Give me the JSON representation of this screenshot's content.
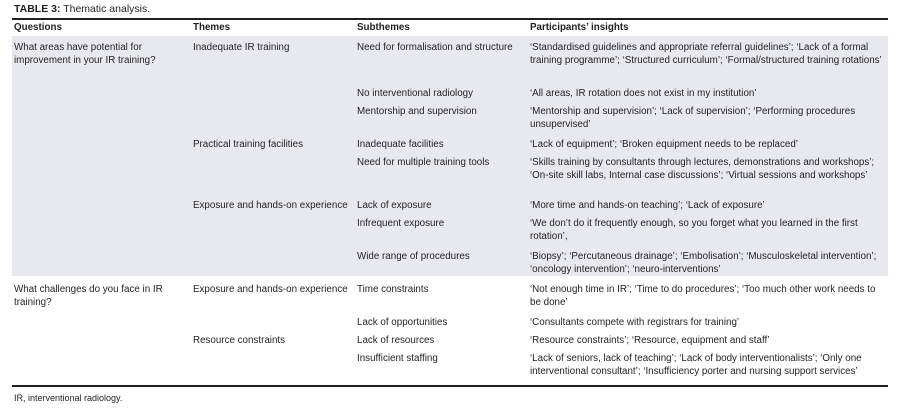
{
  "caption": {
    "label": "TABLE 3:",
    "text": " Thematic analysis."
  },
  "headers": [
    "Questions",
    "Themes",
    "Subthemes",
    "Participants’ insights"
  ],
  "rows": [
    {
      "question": "What areas have potential for improvement in your IR training?",
      "theme": "Inadequate IR training",
      "subtheme": "Need for formalisation and structure",
      "insight": "‘Standardised guidelines and appropriate referral guidelines’; ‘Lack of a formal training programme’; ‘Structured curriculum’; ‘Formal/structured training rotations’"
    },
    {
      "question": "",
      "theme": "",
      "subtheme": "No interventional radiology",
      "insight": "‘All areas, IR rotation does not exist in my institution’"
    },
    {
      "question": "",
      "theme": "",
      "subtheme": "Mentorship and supervision",
      "insight": "‘Mentorship and supervision’; ‘Lack of supervision’; ‘Performing procedures unsupervised’"
    },
    {
      "question": "",
      "theme": "Practical training facilities",
      "subtheme": "Inadequate facilities",
      "insight": "‘Lack of equipment’; ‘Broken equipment needs to be replaced’"
    },
    {
      "question": "",
      "theme": "",
      "subtheme": "Need for multiple training tools",
      "insight": " ‘Skills training by consultants through lectures, demonstrations and workshops’; ‘On-site skill labs, Internal case discussions’; ‘Virtual sessions and workshops’"
    },
    {
      "question": "",
      "theme": "Exposure and hands-on experience",
      "subtheme": "Lack of exposure",
      "insight": "‘More time and hands-on teaching’; ‘Lack of exposure’"
    },
    {
      "question": "",
      "theme": "",
      "subtheme": "Infrequent exposure",
      "insight": "‘We don’t do it frequently enough, so you forget what you learned in the first rotation’,"
    },
    {
      "question": "",
      "theme": "",
      "subtheme": "Wide range of procedures",
      "insight": "‘Biopsy’; ‘Percutaneous drainage’; ‘Embolisation’; ‘Musculoskeletal intervention’; ‘oncology intervention’; ‘neuro-interventions’"
    },
    {
      "question": "What challenges do you face in IR training?",
      "theme": "Exposure and hands-on experience",
      "subtheme": "Time constraints",
      "insight": "‘Not enough time in IR’; ‘Time to do procedures’; ‘Too much other work needs to be done’"
    },
    {
      "question": "",
      "theme": "",
      "subtheme": "Lack of opportunities",
      "insight": "‘Consultants compete with registrars for training’"
    },
    {
      "question": "",
      "theme": "Resource constraints",
      "subtheme": "Lack of resources",
      "insight": "‘Resource constraints’; ‘Resource, equipment and staff’"
    },
    {
      "question": "",
      "theme": "",
      "subtheme": "Insufficient staffing",
      "insight": "‘Lack of seniors, lack of teaching’; ‘Lack of body interventionalists’; ‘Only one interventional consultant’; ‘Insufficiency porter and nursing support services’"
    }
  ],
  "footnote": "IR, interventional radiology.",
  "colors": {
    "shaded_row": "#e8e9ee",
    "text": "#231f20"
  }
}
